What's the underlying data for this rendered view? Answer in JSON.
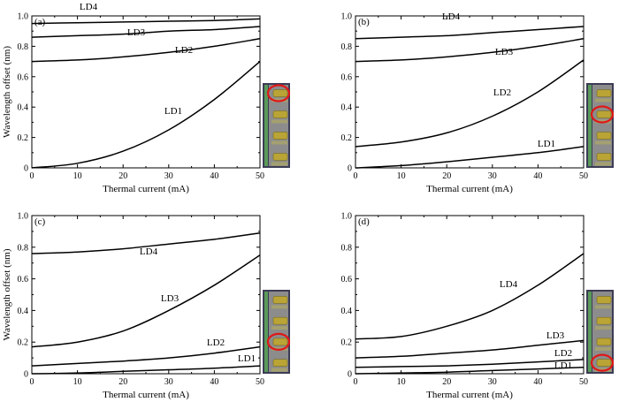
{
  "chart_data": [
    {
      "type": "line",
      "panel_label": "(a)",
      "xlabel": "Thermal current (mA)",
      "ylabel": "Wavelength offset (nm)",
      "xlim": [
        0,
        50
      ],
      "ylim": [
        0,
        1.0
      ],
      "xticks": [
        "0",
        "10",
        "20",
        "30",
        "40",
        "50"
      ],
      "yticks": [
        "0",
        "0.2",
        "0.4",
        "0.6",
        "0.8",
        "1.0"
      ],
      "grid": false,
      "highlighted_laser": 1,
      "x": [
        0,
        10,
        20,
        30,
        40,
        50
      ],
      "series": [
        {
          "name": "LD1",
          "values": [
            0.0,
            0.03,
            0.11,
            0.25,
            0.45,
            0.7
          ]
        },
        {
          "name": "LD2",
          "values": [
            0.7,
            0.71,
            0.73,
            0.76,
            0.8,
            0.85
          ]
        },
        {
          "name": "LD3",
          "values": [
            0.86,
            0.87,
            0.88,
            0.9,
            0.91,
            0.93
          ]
        },
        {
          "name": "LD4",
          "values": [
            0.95,
            0.955,
            0.96,
            0.965,
            0.97,
            0.98
          ]
        }
      ]
    },
    {
      "type": "line",
      "panel_label": "(b)",
      "xlabel": "Thermal current (mA)",
      "ylabel": "",
      "xlim": [
        0,
        50
      ],
      "ylim": [
        0,
        1.0
      ],
      "xticks": [
        "0",
        "10",
        "20",
        "30",
        "40",
        "50"
      ],
      "yticks": [
        "0",
        "0.2",
        "0.4",
        "0.6",
        "0.8",
        "1.0"
      ],
      "grid": false,
      "highlighted_laser": 2,
      "x": [
        0,
        10,
        20,
        30,
        40,
        50
      ],
      "series": [
        {
          "name": "LD1",
          "values": [
            0.0,
            0.015,
            0.04,
            0.07,
            0.1,
            0.14
          ]
        },
        {
          "name": "LD2",
          "values": [
            0.14,
            0.17,
            0.23,
            0.34,
            0.5,
            0.71
          ]
        },
        {
          "name": "LD3",
          "values": [
            0.7,
            0.71,
            0.73,
            0.76,
            0.8,
            0.85
          ]
        },
        {
          "name": "LD4",
          "values": [
            0.85,
            0.86,
            0.87,
            0.89,
            0.91,
            0.93
          ]
        }
      ]
    },
    {
      "type": "line",
      "panel_label": "(c)",
      "xlabel": "Thermal current (mA)",
      "ylabel": "Wavelength offset (nm)",
      "xlim": [
        0,
        50
      ],
      "ylim": [
        0,
        1.0
      ],
      "xticks": [
        "0",
        "10",
        "20",
        "30",
        "40",
        "50"
      ],
      "yticks": [
        "0",
        "0.2",
        "0.4",
        "0.6",
        "0.8",
        "1.0"
      ],
      "grid": false,
      "highlighted_laser": 3,
      "x": [
        0,
        10,
        20,
        30,
        40,
        50
      ],
      "series": [
        {
          "name": "LD1",
          "values": [
            0.0,
            0.005,
            0.015,
            0.025,
            0.035,
            0.05
          ]
        },
        {
          "name": "LD2",
          "values": [
            0.05,
            0.065,
            0.08,
            0.1,
            0.13,
            0.17
          ]
        },
        {
          "name": "LD3",
          "values": [
            0.17,
            0.2,
            0.27,
            0.4,
            0.56,
            0.75
          ]
        },
        {
          "name": "LD4",
          "values": [
            0.76,
            0.77,
            0.79,
            0.82,
            0.85,
            0.89
          ]
        }
      ]
    },
    {
      "type": "line",
      "panel_label": "(d)",
      "xlabel": "Thermal current (mA)",
      "ylabel": "",
      "xlim": [
        0,
        50
      ],
      "ylim": [
        0,
        1.0
      ],
      "xticks": [
        "0",
        "10",
        "20",
        "30",
        "40",
        "50"
      ],
      "yticks": [
        "0",
        "0.2",
        "0.4",
        "0.6",
        "0.8",
        "1.0"
      ],
      "grid": false,
      "highlighted_laser": 4,
      "x": [
        0,
        10,
        20,
        30,
        40,
        50
      ],
      "series": [
        {
          "name": "LD1",
          "values": [
            0.0,
            0.005,
            0.01,
            0.02,
            0.03,
            0.04
          ]
        },
        {
          "name": "LD2",
          "values": [
            0.04,
            0.045,
            0.05,
            0.06,
            0.075,
            0.09
          ]
        },
        {
          "name": "LD3",
          "values": [
            0.1,
            0.11,
            0.13,
            0.15,
            0.18,
            0.21
          ]
        },
        {
          "name": "LD4",
          "values": [
            0.22,
            0.235,
            0.3,
            0.4,
            0.56,
            0.76
          ]
        }
      ]
    }
  ]
}
